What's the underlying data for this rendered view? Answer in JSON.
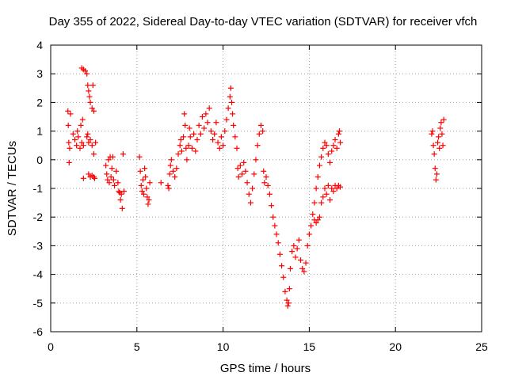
{
  "chart_data": {
    "type": "scatter",
    "title": "Day 355 of 2022, Sidereal Day-to-day VTEC variation (SDTVAR) for receiver vfch",
    "xlabel": "GPS time / hours",
    "ylabel": "SDTVAR / TECUs",
    "xlim": [
      0,
      25
    ],
    "ylim": [
      -6,
      4
    ],
    "xticks": [
      0,
      5,
      10,
      15,
      20,
      25
    ],
    "yticks": [
      -6,
      -5,
      -4,
      -3,
      -2,
      -1,
      0,
      1,
      2,
      3,
      4
    ],
    "grid": true,
    "marker": "plus",
    "series": [
      {
        "name": "SDTVAR",
        "color": "#ff0000",
        "points": [
          [
            1.0,
            1.7
          ],
          [
            1.02,
            1.2
          ],
          [
            1.05,
            0.6
          ],
          [
            1.07,
            -0.1
          ],
          [
            1.1,
            0.4
          ],
          [
            1.15,
            1.6
          ],
          [
            1.3,
            0.9
          ],
          [
            1.4,
            0.7
          ],
          [
            1.5,
            0.5
          ],
          [
            1.55,
            1.0
          ],
          [
            1.6,
            0.8
          ],
          [
            1.7,
            0.4
          ],
          [
            1.75,
            1.2
          ],
          [
            1.8,
            0.6
          ],
          [
            1.85,
            1.4
          ],
          [
            1.9,
            0.5
          ],
          [
            1.9,
            -0.65
          ],
          [
            1.8,
            3.2
          ],
          [
            1.9,
            3.15
          ],
          [
            2.0,
            3.1
          ],
          [
            2.1,
            3.0
          ],
          [
            2.15,
            2.6
          ],
          [
            2.2,
            2.4
          ],
          [
            2.25,
            2.2
          ],
          [
            2.3,
            2.0
          ],
          [
            2.4,
            1.8
          ],
          [
            2.45,
            2.6
          ],
          [
            2.5,
            1.7
          ],
          [
            2.1,
            0.8
          ],
          [
            2.15,
            0.9
          ],
          [
            2.2,
            0.6
          ],
          [
            2.3,
            0.7
          ],
          [
            2.4,
            0.5
          ],
          [
            2.5,
            0.2
          ],
          [
            2.6,
            0.6
          ],
          [
            2.2,
            -0.5
          ],
          [
            2.3,
            -0.6
          ],
          [
            2.4,
            -0.55
          ],
          [
            2.5,
            -0.6
          ],
          [
            2.55,
            -0.65
          ],
          [
            3.2,
            -0.2
          ],
          [
            3.25,
            -0.5
          ],
          [
            3.3,
            -0.7
          ],
          [
            3.35,
            0.0
          ],
          [
            3.4,
            -0.8
          ],
          [
            3.45,
            0.1
          ],
          [
            3.5,
            -0.6
          ],
          [
            3.55,
            -0.3
          ],
          [
            3.6,
            0.1
          ],
          [
            3.65,
            -0.7
          ],
          [
            3.7,
            -0.9
          ],
          [
            3.8,
            -0.4
          ],
          [
            3.9,
            -0.8
          ],
          [
            3.95,
            -1.1
          ],
          [
            4.0,
            -1.15
          ],
          [
            4.05,
            -1.4
          ],
          [
            4.1,
            -1.2
          ],
          [
            4.15,
            -1.7
          ],
          [
            4.2,
            0.2
          ],
          [
            4.25,
            -1.1
          ],
          [
            5.15,
            0.1
          ],
          [
            5.2,
            -0.4
          ],
          [
            5.25,
            -0.9
          ],
          [
            5.3,
            -1.1
          ],
          [
            5.35,
            -0.7
          ],
          [
            5.4,
            -1.2
          ],
          [
            5.45,
            -0.3
          ],
          [
            5.5,
            -0.6
          ],
          [
            5.55,
            -1.0
          ],
          [
            5.6,
            -1.3
          ],
          [
            5.65,
            -1.55
          ],
          [
            5.7,
            -1.4
          ],
          [
            5.75,
            -0.8
          ],
          [
            6.4,
            -0.8
          ],
          [
            6.8,
            -0.9
          ],
          [
            6.85,
            -1.0
          ],
          [
            6.9,
            -0.5
          ],
          [
            6.95,
            -0.2
          ],
          [
            7.0,
            0.0
          ],
          [
            7.1,
            -0.4
          ],
          [
            7.2,
            -0.6
          ],
          [
            7.3,
            -0.3
          ],
          [
            7.4,
            0.2
          ],
          [
            7.5,
            0.5
          ],
          [
            7.55,
            0.7
          ],
          [
            7.6,
            0.3
          ],
          [
            7.7,
            0.8
          ],
          [
            7.75,
            1.6
          ],
          [
            7.8,
            1.2
          ],
          [
            7.85,
            0.4
          ],
          [
            7.9,
            0.0
          ],
          [
            8.0,
            0.5
          ],
          [
            8.05,
            1.1
          ],
          [
            8.1,
            0.8
          ],
          [
            8.2,
            0.4
          ],
          [
            8.3,
            0.9
          ],
          [
            8.4,
            0.3
          ],
          [
            8.5,
            0.7
          ],
          [
            8.6,
            1.2
          ],
          [
            8.7,
            0.9
          ],
          [
            8.8,
            1.5
          ],
          [
            8.9,
            1.1
          ],
          [
            9.0,
            1.6
          ],
          [
            9.1,
            1.3
          ],
          [
            9.2,
            1.8
          ],
          [
            9.3,
            1.0
          ],
          [
            9.4,
            0.7
          ],
          [
            9.5,
            0.9
          ],
          [
            9.6,
            1.3
          ],
          [
            9.7,
            0.6
          ],
          [
            9.8,
            0.4
          ],
          [
            9.9,
            0.8
          ],
          [
            10.0,
            0.5
          ],
          [
            10.1,
            1.0
          ],
          [
            10.2,
            1.4
          ],
          [
            10.3,
            1.8
          ],
          [
            10.4,
            2.2
          ],
          [
            10.45,
            2.5
          ],
          [
            10.5,
            2.0
          ],
          [
            10.55,
            1.6
          ],
          [
            10.6,
            1.2
          ],
          [
            10.7,
            0.8
          ],
          [
            10.8,
            0.4
          ],
          [
            10.85,
            -0.3
          ],
          [
            10.9,
            -0.6
          ],
          [
            11.0,
            -0.2
          ],
          [
            11.1,
            -0.5
          ],
          [
            11.2,
            -0.1
          ],
          [
            11.3,
            -0.4
          ],
          [
            11.4,
            -0.8
          ],
          [
            11.5,
            -1.2
          ],
          [
            11.6,
            -1.5
          ],
          [
            11.7,
            -1.0
          ],
          [
            11.8,
            -0.5
          ],
          [
            11.9,
            0.0
          ],
          [
            12.0,
            0.5
          ],
          [
            12.1,
            0.9
          ],
          [
            12.2,
            1.2
          ],
          [
            12.3,
            1.0
          ],
          [
            12.35,
            -0.4
          ],
          [
            12.4,
            -0.8
          ],
          [
            12.5,
            -0.6
          ],
          [
            12.6,
            -0.9
          ],
          [
            12.7,
            -1.2
          ],
          [
            12.8,
            -1.6
          ],
          [
            12.9,
            -2.0
          ],
          [
            13.0,
            -2.3
          ],
          [
            13.1,
            -2.6
          ],
          [
            13.2,
            -2.9
          ],
          [
            13.3,
            -3.3
          ],
          [
            13.4,
            -3.7
          ],
          [
            13.5,
            -4.1
          ],
          [
            13.6,
            -4.6
          ],
          [
            13.7,
            -4.9
          ],
          [
            13.75,
            -5.1
          ],
          [
            13.8,
            -5.0
          ],
          [
            13.85,
            -4.5
          ],
          [
            13.9,
            -3.8
          ],
          [
            14.0,
            -3.2
          ],
          [
            14.1,
            -3.0
          ],
          [
            14.2,
            -3.4
          ],
          [
            14.3,
            -3.1
          ],
          [
            14.4,
            -2.8
          ],
          [
            14.5,
            -3.5
          ],
          [
            14.6,
            -3.8
          ],
          [
            14.7,
            -3.9
          ],
          [
            14.8,
            -3.6
          ],
          [
            14.9,
            -3.0
          ],
          [
            15.0,
            -2.6
          ],
          [
            15.1,
            -2.3
          ],
          [
            15.2,
            -1.9
          ],
          [
            15.3,
            -1.5
          ],
          [
            15.4,
            -1.0
          ],
          [
            15.5,
            -0.6
          ],
          [
            15.6,
            -0.2
          ],
          [
            15.7,
            0.1
          ],
          [
            15.8,
            0.4
          ],
          [
            15.9,
            0.6
          ],
          [
            16.0,
            0.5
          ],
          [
            16.1,
            0.2
          ],
          [
            16.2,
            -0.1
          ],
          [
            16.3,
            0.3
          ],
          [
            16.4,
            0.5
          ],
          [
            16.5,
            0.7
          ],
          [
            16.6,
            0.4
          ],
          [
            16.7,
            0.9
          ],
          [
            16.75,
            1.0
          ],
          [
            16.8,
            0.6
          ],
          [
            15.3,
            -2.1
          ],
          [
            15.4,
            -2.2
          ],
          [
            15.5,
            -2.1
          ],
          [
            15.6,
            -2.0
          ],
          [
            15.7,
            -1.5
          ],
          [
            15.8,
            -1.3
          ],
          [
            15.9,
            -1.0
          ],
          [
            16.0,
            -1.2
          ],
          [
            16.1,
            -0.9
          ],
          [
            16.2,
            -1.4
          ],
          [
            16.3,
            -1.0
          ],
          [
            16.4,
            -1.1
          ],
          [
            16.5,
            -0.9
          ],
          [
            16.6,
            -1.0
          ],
          [
            16.7,
            -0.9
          ],
          [
            16.8,
            -0.95
          ],
          [
            22.1,
            0.9
          ],
          [
            22.15,
            1.0
          ],
          [
            22.2,
            0.5
          ],
          [
            22.25,
            0.2
          ],
          [
            22.3,
            -0.3
          ],
          [
            22.35,
            -0.7
          ],
          [
            22.4,
            -0.5
          ],
          [
            22.45,
            0.6
          ],
          [
            22.5,
            0.8
          ],
          [
            22.55,
            0.4
          ],
          [
            22.6,
            1.1
          ],
          [
            22.65,
            1.3
          ],
          [
            22.7,
            0.9
          ],
          [
            22.75,
            0.5
          ],
          [
            22.8,
            1.4
          ]
        ]
      }
    ]
  }
}
